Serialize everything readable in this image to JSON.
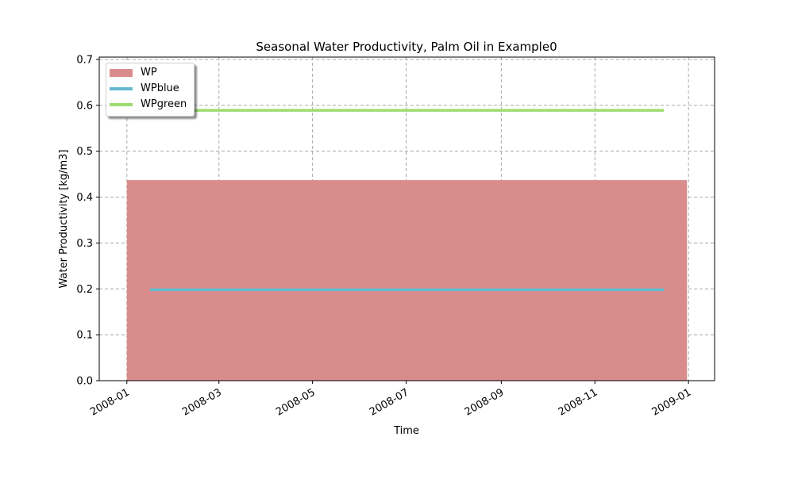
{
  "chart_data": {
    "type": "bar",
    "title": "Seasonal Water Productivity, Palm Oil in Example0",
    "xlabel": "Time",
    "ylabel": "Water Productivity [kg/m3]",
    "xlim": [
      "2007-12-14",
      "2009-01-18"
    ],
    "ylim": [
      0,
      0.705
    ],
    "yticks": [
      0.0,
      0.1,
      0.2,
      0.3,
      0.4,
      0.5,
      0.6,
      0.7
    ],
    "yticklabels": [
      "0.0",
      "0.1",
      "0.2",
      "0.3",
      "0.4",
      "0.5",
      "0.6",
      "0.7"
    ],
    "xticks": [
      "2008-01-01",
      "2008-03-01",
      "2008-05-01",
      "2008-07-01",
      "2008-09-01",
      "2008-11-01",
      "2009-01-01"
    ],
    "xticklabels": [
      "2008-01",
      "2008-03",
      "2008-05",
      "2008-07",
      "2008-09",
      "2008-11",
      "2009-01"
    ],
    "grid": true,
    "legend_position": "upper left",
    "series": [
      {
        "name": "WP",
        "kind": "bar",
        "x_start": "2008-01-01",
        "x_end": "2008-12-31",
        "value": 0.437,
        "color": "#d98c8c"
      },
      {
        "name": "WPblue",
        "kind": "line",
        "x": [
          "2008-01-16",
          "2008-12-16"
        ],
        "values": [
          0.198,
          0.198
        ],
        "color": "#65b8cf"
      },
      {
        "name": "WPgreen",
        "kind": "line",
        "x": [
          "2008-01-16",
          "2008-12-16"
        ],
        "values": [
          0.589,
          0.589
        ],
        "color": "#9edc6f"
      }
    ]
  }
}
